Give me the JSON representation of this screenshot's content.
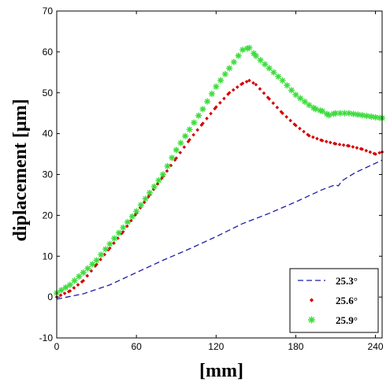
{
  "chart_data": {
    "type": "line",
    "xlabel": "[mm]",
    "ylabel": "diplacement [μm]",
    "xlim": [
      0,
      245
    ],
    "ylim": [
      -10,
      70
    ],
    "xticks": [
      "0",
      "60",
      "120",
      "180",
      "240"
    ],
    "yticks": [
      "-10",
      "0",
      "10",
      "20",
      "30",
      "40",
      "50",
      "60",
      "70"
    ],
    "grid": false,
    "legend_position": "bottom-right",
    "series": [
      {
        "name": "25.3°",
        "style": "dashed-line",
        "color": "#1c1ca8",
        "points": [
          [
            0,
            -0.5
          ],
          [
            20,
            0.8
          ],
          [
            40,
            3
          ],
          [
            60,
            6
          ],
          [
            80,
            9
          ],
          [
            100,
            11.8
          ],
          [
            120,
            14.8
          ],
          [
            140,
            18
          ],
          [
            160,
            20.5
          ],
          [
            180,
            23.3
          ],
          [
            200,
            26.3
          ],
          [
            210,
            27.5
          ],
          [
            212,
            27.2
          ],
          [
            215,
            28.5
          ],
          [
            225,
            30.5
          ],
          [
            245,
            33.5
          ]
        ]
      },
      {
        "name": "25.6°",
        "style": "diamond-markers",
        "color": "#d40000",
        "points": [
          [
            0,
            0
          ],
          [
            10,
            1.5
          ],
          [
            20,
            4
          ],
          [
            30,
            8
          ],
          [
            40,
            12
          ],
          [
            50,
            16
          ],
          [
            60,
            20.5
          ],
          [
            70,
            25
          ],
          [
            80,
            29.5
          ],
          [
            90,
            34
          ],
          [
            100,
            38.5
          ],
          [
            110,
            42.5
          ],
          [
            120,
            46.5
          ],
          [
            130,
            50
          ],
          [
            140,
            52.3
          ],
          [
            145,
            53
          ],
          [
            150,
            52
          ],
          [
            160,
            48.5
          ],
          [
            170,
            45
          ],
          [
            180,
            42
          ],
          [
            190,
            39.5
          ],
          [
            200,
            38.3
          ],
          [
            210,
            37.5
          ],
          [
            220,
            37
          ],
          [
            230,
            36.2
          ],
          [
            240,
            35
          ],
          [
            245,
            35.5
          ]
        ]
      },
      {
        "name": "25.9°",
        "style": "star-markers",
        "color": "#3ddc3d",
        "points": [
          [
            0,
            1
          ],
          [
            10,
            3
          ],
          [
            20,
            6
          ],
          [
            30,
            9
          ],
          [
            40,
            13
          ],
          [
            50,
            17
          ],
          [
            60,
            21
          ],
          [
            70,
            25.5
          ],
          [
            80,
            30
          ],
          [
            90,
            36
          ],
          [
            100,
            41
          ],
          [
            110,
            46
          ],
          [
            120,
            51.5
          ],
          [
            130,
            56
          ],
          [
            140,
            60.5
          ],
          [
            145,
            61
          ],
          [
            150,
            59
          ],
          [
            160,
            56
          ],
          [
            170,
            53
          ],
          [
            180,
            49.5
          ],
          [
            190,
            47
          ],
          [
            195,
            46
          ],
          [
            200,
            45.5
          ],
          [
            205,
            44.5
          ],
          [
            210,
            45
          ],
          [
            220,
            45
          ],
          [
            230,
            44.5
          ],
          [
            240,
            44
          ],
          [
            245,
            43.8
          ]
        ]
      }
    ]
  }
}
